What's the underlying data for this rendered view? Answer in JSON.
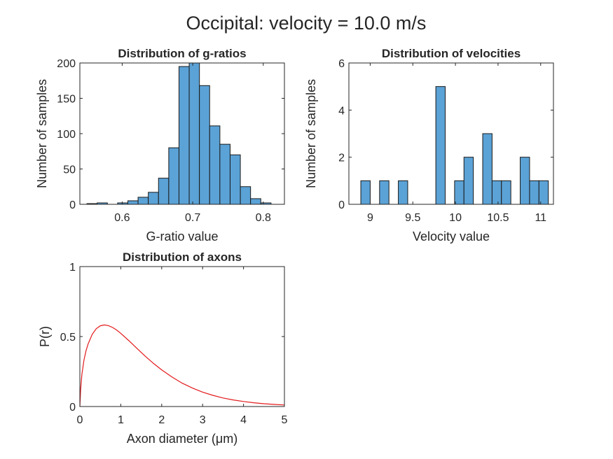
{
  "figure": {
    "suptitle": "Occipital: velocity = 10.0 m/s"
  },
  "chart_data": [
    {
      "type": "bar",
      "title": "Distribution of g-ratios",
      "xlabel": "G-ratio value",
      "ylabel": "Number of samples",
      "xlim": [
        0.54,
        0.83
      ],
      "ylim": [
        0,
        200
      ],
      "xticks": [
        0.6,
        0.7,
        0.8
      ],
      "xtick_labels": [
        "0.6",
        "0.7",
        "0.8"
      ],
      "yticks": [
        0,
        50,
        100,
        150,
        200
      ],
      "ytick_labels": [
        "0",
        "50",
        "100",
        "150",
        "200"
      ],
      "bin_width": 0.0145,
      "bin_starts": [
        0.55,
        0.5645,
        0.579,
        0.5935,
        0.608,
        0.6225,
        0.637,
        0.6515,
        0.666,
        0.6805,
        0.695,
        0.7095,
        0.724,
        0.7385,
        0.753,
        0.7675,
        0.782,
        0.7965,
        0.811
      ],
      "values": [
        1,
        2,
        0,
        2,
        5,
        10,
        17,
        37,
        80,
        195,
        200,
        168,
        111,
        85,
        70,
        25,
        8,
        2,
        0
      ],
      "grid": false
    },
    {
      "type": "bar",
      "title": "Distribution of velocities",
      "xlabel": "Velocity value",
      "ylabel": "Number of samples",
      "xlim": [
        8.75,
        11.15
      ],
      "ylim": [
        0,
        6
      ],
      "xticks": [
        9,
        9.5,
        10,
        10.5,
        11
      ],
      "xtick_labels": [
        "9",
        "9.5",
        "10",
        "10.5",
        "11"
      ],
      "yticks": [
        0,
        2,
        4,
        6
      ],
      "ytick_labels": [
        "0",
        "2",
        "4",
        "6"
      ],
      "bin_width": 0.11,
      "bin_starts": [
        8.89,
        9.0,
        9.11,
        9.22,
        9.33,
        9.44,
        9.55,
        9.66,
        9.77,
        9.88,
        9.99,
        10.1,
        10.21,
        10.32,
        10.43,
        10.54,
        10.65,
        10.76,
        10.87,
        10.98
      ],
      "values": [
        1,
        0,
        1,
        0,
        1,
        0,
        0,
        0,
        5,
        0,
        1,
        2,
        0,
        3,
        1,
        1,
        0,
        2,
        1,
        1
      ],
      "grid": false
    },
    {
      "type": "line",
      "title": "Distribution of axons",
      "xlabel": "Axon diameter (μm)",
      "ylabel": "P(r)",
      "xlim": [
        0,
        5
      ],
      "ylim": [
        0,
        1
      ],
      "xticks": [
        0,
        1,
        2,
        3,
        4,
        5
      ],
      "xtick_labels": [
        "0",
        "1",
        "2",
        "3",
        "4",
        "5"
      ],
      "yticks": [
        0,
        0.5,
        1
      ],
      "ytick_labels": [
        "0",
        "0.5",
        "1"
      ],
      "series": [
        {
          "color": "#e31a1c",
          "x": [
            0,
            0.02,
            0.05,
            0.1,
            0.15,
            0.2,
            0.3,
            0.4,
            0.5,
            0.6,
            0.7,
            0.8,
            0.9,
            1.0,
            1.2,
            1.4,
            1.6,
            1.8,
            2.0,
            2.25,
            2.5,
            2.75,
            3.0,
            3.25,
            3.5,
            3.75,
            4.0,
            4.25,
            4.5,
            4.75,
            5.0
          ],
          "y": [
            0,
            0.126,
            0.231,
            0.331,
            0.398,
            0.446,
            0.515,
            0.556,
            0.577,
            0.583,
            0.578,
            0.565,
            0.546,
            0.523,
            0.47,
            0.414,
            0.359,
            0.308,
            0.262,
            0.211,
            0.167,
            0.132,
            0.103,
            0.08,
            0.061,
            0.047,
            0.036,
            0.027,
            0.02,
            0.015,
            0.011
          ]
        }
      ],
      "grid": false
    }
  ]
}
